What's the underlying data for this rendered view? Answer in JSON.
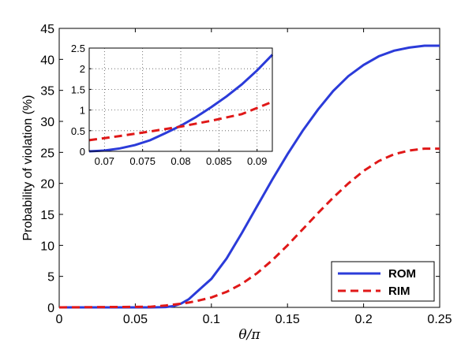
{
  "chart_data": {
    "type": "line",
    "xlabel": "θ/π",
    "ylabel": "Probability of violation (%)",
    "xlim": [
      0,
      0.25
    ],
    "ylim": [
      0,
      45
    ],
    "xticks": [
      "0",
      "0.05",
      "0.1",
      "0.15",
      "0.2",
      "0.25"
    ],
    "yticks": [
      "0",
      "5",
      "10",
      "15",
      "20",
      "25",
      "30",
      "35",
      "40",
      "45"
    ],
    "legend_position": "bottom-right",
    "series": [
      {
        "name": "ROM",
        "color": "#2b3bd9",
        "style": "solid",
        "x": [
          0,
          0.06,
          0.07,
          0.075,
          0.08,
          0.085,
          0.09,
          0.1,
          0.11,
          0.12,
          0.13,
          0.14,
          0.15,
          0.16,
          0.17,
          0.18,
          0.19,
          0.2,
          0.21,
          0.22,
          0.23,
          0.24,
          0.25
        ],
        "y": [
          0,
          0,
          0.05,
          0.2,
          0.6,
          1.3,
          2.4,
          4.6,
          7.9,
          12.0,
          16.3,
          20.6,
          24.7,
          28.5,
          31.9,
          34.9,
          37.3,
          39.1,
          40.5,
          41.4,
          41.9,
          42.2,
          42.2
        ]
      },
      {
        "name": "RIM",
        "color": "#e01818",
        "style": "dashed",
        "x": [
          0,
          0.06,
          0.07,
          0.075,
          0.08,
          0.085,
          0.09,
          0.1,
          0.11,
          0.12,
          0.13,
          0.14,
          0.15,
          0.16,
          0.17,
          0.18,
          0.19,
          0.2,
          0.21,
          0.22,
          0.23,
          0.24,
          0.25
        ],
        "y": [
          0,
          0.1,
          0.3,
          0.45,
          0.6,
          0.78,
          1.0,
          1.6,
          2.5,
          3.8,
          5.5,
          7.6,
          10.0,
          12.6,
          15.2,
          17.7,
          20.0,
          22.0,
          23.6,
          24.7,
          25.3,
          25.6,
          25.6
        ]
      }
    ],
    "inset": {
      "xlim": [
        0.068,
        0.092
      ],
      "ylim": [
        0,
        2.5
      ],
      "grid": true,
      "xticks": [
        "0.07",
        "0.075",
        "0.08",
        "0.085",
        "0.09"
      ],
      "yticks": [
        "0",
        "0.5",
        "1",
        "1.5",
        "2",
        "2.5"
      ],
      "series": [
        {
          "name": "ROM",
          "color": "#2b3bd9",
          "style": "solid",
          "x": [
            0.068,
            0.07,
            0.072,
            0.074,
            0.076,
            0.078,
            0.08,
            0.082,
            0.084,
            0.086,
            0.088,
            0.09,
            0.092
          ],
          "y": [
            0.0,
            0.02,
            0.07,
            0.15,
            0.27,
            0.44,
            0.62,
            0.83,
            1.07,
            1.33,
            1.62,
            1.96,
            2.34
          ]
        },
        {
          "name": "RIM",
          "color": "#e01818",
          "style": "dashed",
          "x": [
            0.068,
            0.072,
            0.076,
            0.08,
            0.084,
            0.088,
            0.092
          ],
          "y": [
            0.27,
            0.37,
            0.48,
            0.6,
            0.74,
            0.9,
            1.2
          ]
        }
      ]
    }
  }
}
